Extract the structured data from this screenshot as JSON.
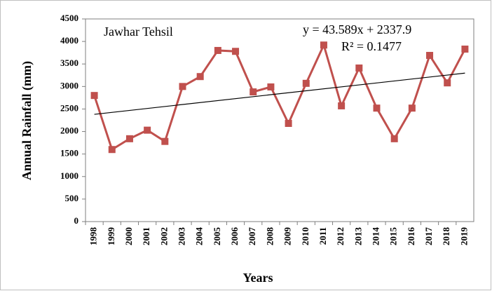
{
  "chart_data": {
    "type": "line",
    "annotation": "Jawhar Tehsil",
    "y_label": "Annual  Rainfall  (mm)",
    "x_label": "Years",
    "categories": [
      "1998",
      "1999",
      "2000",
      "2001",
      "2002",
      "2003",
      "2004",
      "2005",
      "2006",
      "2007",
      "2008",
      "2009",
      "2010",
      "2011",
      "2012",
      "2013",
      "2014",
      "2015",
      "2016",
      "2017",
      "2018",
      "2019"
    ],
    "series": [
      {
        "name": "Annual Rainfall",
        "color": "#c0504d",
        "values": [
          2800,
          1600,
          1840,
          2030,
          1780,
          3000,
          3220,
          3800,
          3780,
          2880,
          2990,
          2180,
          3070,
          3920,
          2570,
          3410,
          2520,
          1840,
          2520,
          3690,
          3080,
          3830
        ]
      }
    ],
    "trendline": {
      "slope": 43.589,
      "intercept": 2337.9,
      "equation": "y = 43.589x + 2337.9",
      "r2_label": "R² = 0.1477",
      "color": "#000000"
    },
    "ylim": [
      0,
      4500
    ],
    "yticks": [
      0,
      500,
      1000,
      1500,
      2000,
      2500,
      3000,
      3500,
      4000,
      4500
    ],
    "grid": false
  }
}
